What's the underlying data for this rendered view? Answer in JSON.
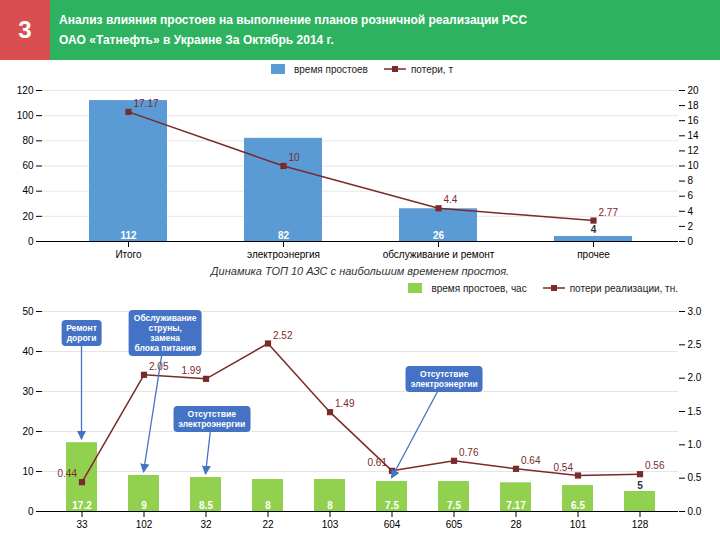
{
  "header": {
    "number": "3",
    "title": "Анализ влияния простоев на выполнение планов розничной реализации РСС",
    "subtitle": "ОАО «Татнефть» в Украине За Октябрь 2014 г.",
    "color": "#2db360",
    "number_color": "#d94f4f"
  },
  "chart_data": [
    {
      "type": "bar",
      "categories": [
        "Итого",
        "электроэнергия",
        "обслуживание и ремонт",
        "прочее"
      ],
      "series": [
        {
          "name": "время простоев",
          "type": "bar",
          "color": "#5b9bd5",
          "values": [
            112,
            82,
            26,
            4
          ]
        },
        {
          "name": "потери, т",
          "type": "line",
          "axis": "y2",
          "color": "#7b2a2a",
          "marker": "square",
          "values": [
            17.17,
            10,
            4.4,
            2.77
          ]
        }
      ],
      "ylim": [
        0,
        120
      ],
      "yticks": [
        0,
        20,
        40,
        60,
        80,
        100,
        120
      ],
      "y2lim": [
        0,
        20
      ],
      "y2ticks": [
        0,
        2,
        4,
        6,
        8,
        10,
        12,
        14,
        16,
        18,
        20
      ],
      "grid": true,
      "legend": "top",
      "data_labels": true
    },
    {
      "type": "bar",
      "title": "Динамика ТОП 10 АЗС с наибольшим временем простоя.",
      "categories": [
        "33",
        "102",
        "32",
        "22",
        "103",
        "604",
        "605",
        "28",
        "101",
        "128"
      ],
      "series": [
        {
          "name": "время простоев, час",
          "type": "bar",
          "color": "#92d050",
          "values": [
            17.2,
            9,
            8.5,
            8,
            8,
            7.5,
            7.5,
            7.17,
            6.5,
            5
          ]
        },
        {
          "name": "потери реализации, тн.",
          "type": "line",
          "axis": "y2",
          "color": "#7b2a2a",
          "marker": "square",
          "values": [
            0.44,
            2.05,
            1.99,
            2.52,
            1.49,
            0.61,
            0.76,
            0.64,
            0.54,
            0.56
          ]
        }
      ],
      "ylim": [
        0,
        50
      ],
      "yticks": [
        0,
        10,
        20,
        30,
        40,
        50
      ],
      "y2lim": [
        0,
        3.0
      ],
      "y2ticks": [
        {
          "value": 0,
          "label": "0.0"
        },
        0.5,
        {
          "value": 1,
          "label": "1.0"
        },
        1.5,
        {
          "value": 2,
          "label": "2.0"
        },
        2.5,
        {
          "value": 3,
          "label": "3.0"
        }
      ],
      "grid": true,
      "legend": "top right",
      "data_labels": true,
      "annotations": [
        {
          "text": "Ремонт\nдороги",
          "x": "33",
          "color": "#4472c4"
        },
        {
          "text": "Обслуживание\nструны,\nзамена\nблока питания",
          "x": "102",
          "color": "#4472c4"
        },
        {
          "text": "Отсутствие\nэлектроэнергии",
          "x": "32",
          "color": "#4472c4"
        },
        {
          "text": "Отсутствие\nэлектроэнергии",
          "x": "604",
          "color": "#4472c4"
        }
      ]
    }
  ]
}
